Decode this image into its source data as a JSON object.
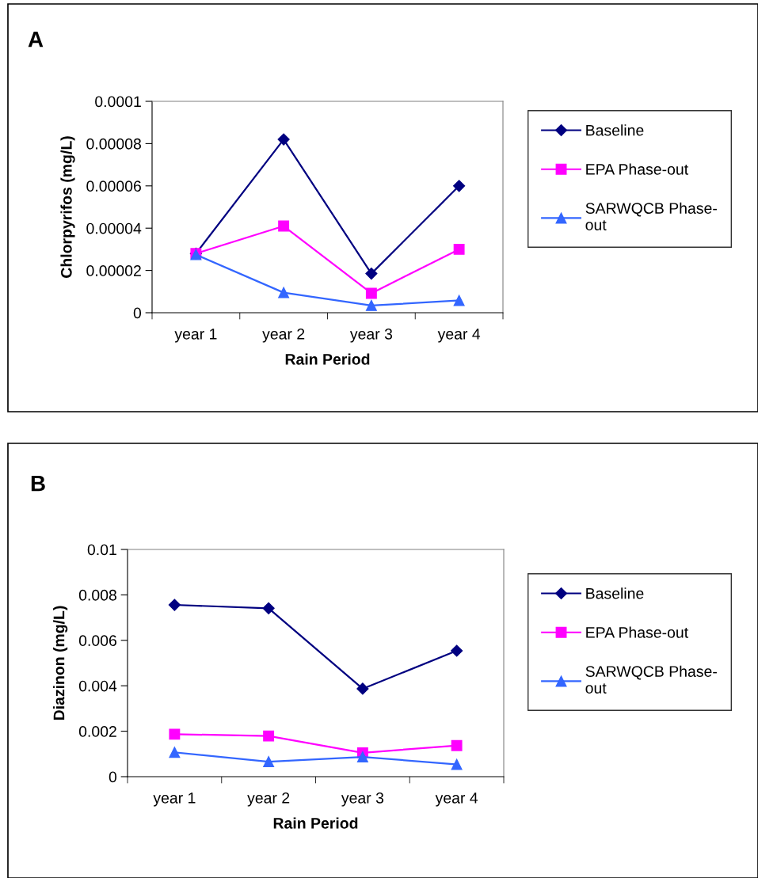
{
  "chart_data": [
    {
      "type": "line",
      "title": "A",
      "xlabel": "Rain Period",
      "ylabel": "Chlorpyrifos (mg/L)",
      "categories": [
        "year 1",
        "year 2",
        "year 3",
        "year 4"
      ],
      "series": [
        {
          "name": "Baseline",
          "color": "#000080",
          "marker": "diamond",
          "values": [
            2.8e-05,
            8.2e-05,
            1.85e-05,
            6e-05
          ]
        },
        {
          "name": "EPA Phase-out",
          "color": "#ff00ff",
          "marker": "square",
          "values": [
            2.8e-05,
            4.1e-05,
            9.2e-06,
            3e-05
          ]
        },
        {
          "name": "SARWQCB Phase-\nout",
          "color": "#3366ff",
          "marker": "triangle",
          "values": [
            2.75e-05,
            9.5e-06,
            3.4e-06,
            5.8e-06
          ]
        }
      ],
      "ylim": [
        0,
        0.0001
      ],
      "yticks": [
        0,
        {
          "value": 2e-05,
          "label": "0.00002"
        },
        {
          "value": 4e-05,
          "label": "0.00004"
        },
        {
          "value": 6e-05,
          "label": "0.00006"
        },
        {
          "value": 8e-05,
          "label": "0.00008"
        },
        {
          "value": 0.0001,
          "label": "0.0001"
        }
      ],
      "legend": "right",
      "line_style": "solid"
    },
    {
      "type": "line",
      "title": "B",
      "xlabel": "Rain Period",
      "ylabel": "Diazinon (mg/L)",
      "categories": [
        "year 1",
        "year 2",
        "year 3",
        "year 4"
      ],
      "series": [
        {
          "name": "Baseline",
          "color": "#000080",
          "marker": "diamond",
          "values": [
            0.00756,
            0.00741,
            0.00387,
            0.00554
          ]
        },
        {
          "name": "EPA Phase-out",
          "color": "#ff00ff",
          "marker": "square",
          "values": [
            0.00187,
            0.00179,
            0.00105,
            0.00137
          ]
        },
        {
          "name": "SARWQCB Phase-\nout",
          "color": "#3366ff",
          "marker": "triangle",
          "values": [
            0.00107,
            0.00066,
            0.00087,
            0.00054
          ]
        }
      ],
      "ylim": [
        0,
        0.01
      ],
      "yticks": [
        0,
        0.002,
        0.004,
        0.006,
        0.008,
        0.01
      ],
      "legend": "right",
      "line_style": "solid"
    }
  ]
}
